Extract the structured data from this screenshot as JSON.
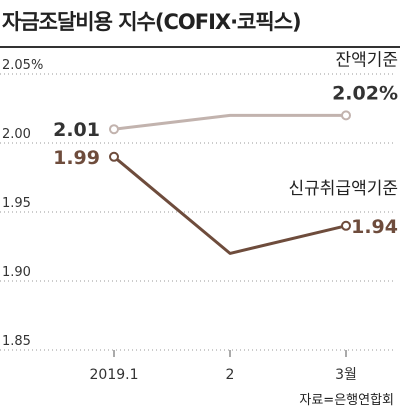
{
  "title": "자금조달비용 지수(COFIX·코픽스)",
  "source": "자료=은행연합회",
  "colors": {
    "balance": "#c2b3ae",
    "new_loan": "#6e4c3c",
    "grid": "#9a9a9a"
  },
  "chart_data": {
    "type": "line",
    "title": "자금조달비용 지수(COFIX·코픽스)",
    "categories": [
      "2019.1",
      "2",
      "3월"
    ],
    "ylim": [
      1.85,
      2.05
    ],
    "yticks": [
      "2.05%",
      "2.00",
      "1.95",
      "1.90",
      "1.85"
    ],
    "ytick_values": [
      2.05,
      2.0,
      1.95,
      1.9,
      1.85
    ],
    "grid": "horizontal dotted",
    "series": [
      {
        "name": "잔액기준",
        "values": [
          2.01,
          2.02,
          2.02
        ],
        "first_label": "2.01",
        "last_label": "2.02%"
      },
      {
        "name": "신규취급액기준",
        "values": [
          1.99,
          1.92,
          1.94
        ],
        "first_label": "1.99",
        "last_label": "1.94"
      }
    ]
  }
}
